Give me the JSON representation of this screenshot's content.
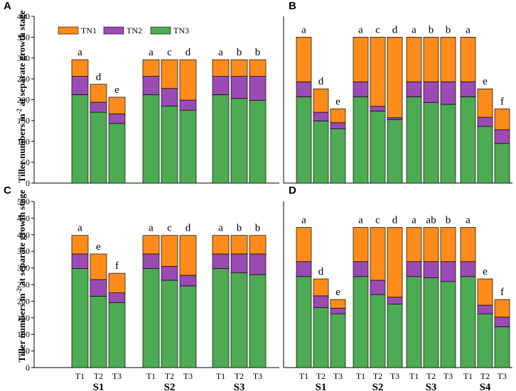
{
  "y_axis_label": {
    "main": "Tiller numbers m",
    "sup": "-2",
    "rest": " at separate growth stage"
  },
  "colors": {
    "TN1": "#ff8c1a",
    "TN2": "#9b4bb4",
    "TN3": "#4dab53",
    "edge": "#000000"
  },
  "legend": [
    "TN1",
    "TN2",
    "TN3"
  ],
  "chart_data": [
    {
      "panel": "A",
      "type": "bar",
      "stacked": true,
      "ylim": [
        0,
        400
      ],
      "yticks": [
        0,
        50,
        100,
        150,
        200,
        250,
        300,
        350,
        400
      ],
      "groups": [
        {
          "label": "S1",
          "bars": [
            {
              "x": "T1",
              "TN3": 212,
              "TN2": 44,
              "TN1": 40,
              "sig": "a"
            },
            {
              "x": "T2",
              "TN3": 170,
              "TN2": 24,
              "TN1": 43,
              "sig": "d"
            },
            {
              "x": "T3",
              "TN3": 143,
              "TN2": 23,
              "TN1": 40,
              "sig": "e"
            }
          ]
        },
        {
          "label": "S2",
          "bars": [
            {
              "x": "T1",
              "TN3": 212,
              "TN2": 44,
              "TN1": 40,
              "sig": "a"
            },
            {
              "x": "T2",
              "TN3": 185,
              "TN2": 42,
              "TN1": 69,
              "sig": "c"
            },
            {
              "x": "T3",
              "TN3": 175,
              "TN2": 24,
              "TN1": 97,
              "sig": "d"
            }
          ]
        },
        {
          "label": "S3",
          "bars": [
            {
              "x": "T1",
              "TN3": 212,
              "TN2": 44,
              "TN1": 40,
              "sig": "a"
            },
            {
              "x": "T2",
              "TN3": 203,
              "TN2": 53,
              "TN1": 40,
              "sig": "b"
            },
            {
              "x": "T3",
              "TN3": 198,
              "TN2": 58,
              "TN1": 40,
              "sig": "b"
            }
          ]
        }
      ]
    },
    {
      "panel": "B",
      "type": "bar",
      "stacked": true,
      "ylim": [
        0,
        400
      ],
      "yticks": [],
      "groups": [
        {
          "label": "S1",
          "bars": [
            {
              "x": "T1",
              "TN3": 207,
              "TN2": 36,
              "TN1": 107,
              "sig": "a"
            },
            {
              "x": "T2",
              "TN3": 149,
              "TN2": 21,
              "TN1": 56,
              "sig": "d"
            },
            {
              "x": "T3",
              "TN3": 130,
              "TN2": 15,
              "TN1": 33,
              "sig": "e"
            }
          ]
        },
        {
          "label": "S2",
          "bars": [
            {
              "x": "T1",
              "TN3": 207,
              "TN2": 36,
              "TN1": 107,
              "sig": "a"
            },
            {
              "x": "T2",
              "TN3": 173,
              "TN2": 11,
              "TN1": 166,
              "sig": "c"
            },
            {
              "x": "T3",
              "TN3": 152,
              "TN2": 5,
              "TN1": 193,
              "sig": "d"
            }
          ]
        },
        {
          "label": "S3",
          "bars": [
            {
              "x": "T1",
              "TN3": 207,
              "TN2": 36,
              "TN1": 107,
              "sig": "a"
            },
            {
              "x": "T2",
              "TN3": 193,
              "TN2": 50,
              "TN1": 107,
              "sig": "b"
            },
            {
              "x": "T3",
              "TN3": 189,
              "TN2": 54,
              "TN1": 107,
              "sig": "b"
            }
          ]
        },
        {
          "label": "S4",
          "bars": [
            {
              "x": "T1",
              "TN3": 207,
              "TN2": 36,
              "TN1": 107,
              "sig": "a"
            },
            {
              "x": "T2",
              "TN3": 136,
              "TN2": 22,
              "TN1": 68,
              "sig": "e"
            },
            {
              "x": "T3",
              "TN3": 95,
              "TN2": 33,
              "TN1": 50,
              "sig": "f"
            }
          ]
        }
      ]
    },
    {
      "panel": "C",
      "type": "bar",
      "stacked": true,
      "ylim": [
        0,
        500
      ],
      "yticks": [
        0,
        50,
        100,
        150,
        200,
        250,
        300,
        350,
        400,
        450,
        500
      ],
      "groups": [
        {
          "label": "S1",
          "bars": [
            {
              "x": "T1",
              "TN3": 298,
              "TN2": 44,
              "TN1": 56,
              "sig": "a"
            },
            {
              "x": "T2",
              "TN3": 215,
              "TN2": 50,
              "TN1": 77,
              "sig": "e"
            },
            {
              "x": "T3",
              "TN3": 196,
              "TN2": 29,
              "TN1": 59,
              "sig": "f"
            }
          ]
        },
        {
          "label": "S2",
          "bars": [
            {
              "x": "T1",
              "TN3": 298,
              "TN2": 44,
              "TN1": 56,
              "sig": "a"
            },
            {
              "x": "T2",
              "TN3": 263,
              "TN2": 42,
              "TN1": 93,
              "sig": "c"
            },
            {
              "x": "T3",
              "TN3": 246,
              "TN2": 32,
              "TN1": 120,
              "sig": "d"
            }
          ]
        },
        {
          "label": "S3",
          "bars": [
            {
              "x": "T1",
              "TN3": 298,
              "TN2": 44,
              "TN1": 56,
              "sig": "a"
            },
            {
              "x": "T2",
              "TN3": 285,
              "TN2": 57,
              "TN1": 56,
              "sig": "b"
            },
            {
              "x": "T3",
              "TN3": 280,
              "TN2": 62,
              "TN1": 56,
              "sig": "b"
            }
          ]
        }
      ]
    },
    {
      "panel": "D",
      "type": "bar",
      "stacked": true,
      "ylim": [
        0,
        500
      ],
      "yticks": [],
      "groups": [
        {
          "label": "S1",
          "bars": [
            {
              "x": "T1",
              "TN3": 274,
              "TN2": 45,
              "TN1": 103,
              "sig": "a"
            },
            {
              "x": "T2",
              "TN3": 181,
              "TN2": 35,
              "TN1": 51,
              "sig": "d"
            },
            {
              "x": "T3",
              "TN3": 162,
              "TN2": 17,
              "TN1": 26,
              "sig": "e"
            }
          ]
        },
        {
          "label": "S2",
          "bars": [
            {
              "x": "T1",
              "TN3": 274,
              "TN2": 45,
              "TN1": 103,
              "sig": "a"
            },
            {
              "x": "T2",
              "TN3": 220,
              "TN2": 43,
              "TN1": 159,
              "sig": "c"
            },
            {
              "x": "T3",
              "TN3": 191,
              "TN2": 21,
              "TN1": 210,
              "sig": "d"
            }
          ]
        },
        {
          "label": "S3",
          "bars": [
            {
              "x": "T1",
              "TN3": 274,
              "TN2": 45,
              "TN1": 103,
              "sig": "a"
            },
            {
              "x": "T2",
              "TN3": 270,
              "TN2": 49,
              "TN1": 103,
              "sig": "ab"
            },
            {
              "x": "T3",
              "TN3": 259,
              "TN2": 60,
              "TN1": 103,
              "sig": "b"
            }
          ]
        },
        {
          "label": "S4",
          "bars": [
            {
              "x": "T1",
              "TN3": 274,
              "TN2": 45,
              "TN1": 103,
              "sig": "a"
            },
            {
              "x": "T2",
              "TN3": 162,
              "TN2": 26,
              "TN1": 79,
              "sig": "e"
            },
            {
              "x": "T3",
              "TN3": 123,
              "TN2": 29,
              "TN1": 53,
              "sig": "f"
            }
          ]
        }
      ]
    }
  ]
}
